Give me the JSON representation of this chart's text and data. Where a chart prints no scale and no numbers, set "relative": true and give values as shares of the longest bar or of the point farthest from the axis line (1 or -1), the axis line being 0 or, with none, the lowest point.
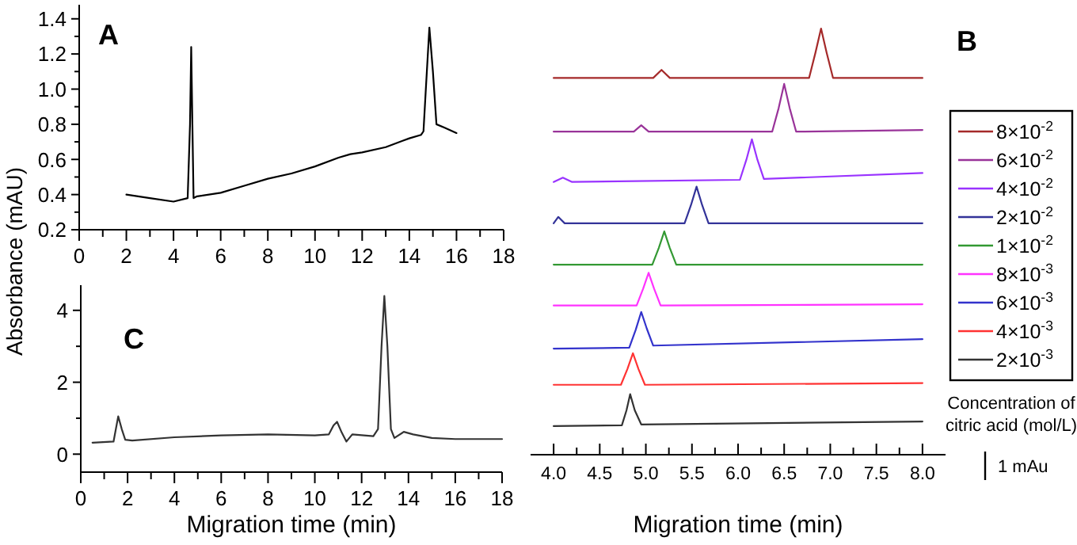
{
  "chart_data": [
    {
      "type": "line",
      "ylabel": "Absorbance (mAU)",
      "annotations": [
        "A"
      ],
      "color": "#000000",
      "legend": false,
      "grid": false,
      "x": [
        2,
        3,
        4,
        4.6,
        4.7,
        4.75,
        4.8,
        4.85,
        5,
        6,
        7,
        8,
        9,
        10,
        11,
        11.5,
        12,
        13,
        14,
        14.5,
        14.6,
        14.7,
        14.85,
        15,
        15.15,
        15.5,
        16
      ],
      "values": [
        0.4,
        0.38,
        0.36,
        0.38,
        0.8,
        1.24,
        0.8,
        0.38,
        0.39,
        0.41,
        0.45,
        0.49,
        0.52,
        0.56,
        0.61,
        0.63,
        0.64,
        0.67,
        0.72,
        0.74,
        0.76,
        1.0,
        1.35,
        1.1,
        0.8,
        0.78,
        0.75
      ],
      "xlim": [
        0,
        18
      ],
      "ylim": [
        0.2,
        1.48
      ],
      "xticks": [
        0,
        {
          "value": 1,
          "label": null
        },
        2,
        {
          "value": 3,
          "label": null
        },
        4,
        {
          "value": 5,
          "label": null
        },
        6,
        {
          "value": 7,
          "label": null
        },
        8,
        {
          "value": 9,
          "label": null
        },
        10,
        {
          "value": 11,
          "label": null
        },
        12,
        {
          "value": 13,
          "label": null
        },
        14,
        {
          "value": 15,
          "label": null
        },
        16,
        {
          "value": 17,
          "label": null
        },
        18
      ],
      "yticks": [
        0.2,
        {
          "value": 0.3,
          "label": null
        },
        0.4,
        {
          "value": 0.5,
          "label": null
        },
        0.6,
        {
          "value": 0.7,
          "label": null
        },
        0.8,
        {
          "value": 0.9,
          "label": null
        },
        {
          "value": 1,
          "label": "1.0"
        },
        {
          "value": 1.1,
          "label": null
        },
        1.2,
        {
          "value": 1.3,
          "label": null
        },
        1.4
      ]
    },
    {
      "type": "line",
      "relative": true,
      "xlabel": "Migration time (min)",
      "legend_title": "Concentration of citric acid (mol/L)",
      "legend": "right",
      "grid": false,
      "annotations": [
        "B",
        "1 mAu"
      ],
      "xlim": [
        3.75,
        8.25
      ],
      "xticks": [
        {
          "value": 4,
          "label": "4.0"
        },
        {
          "value": 4.25,
          "label": null
        },
        4.5,
        {
          "value": 4.75,
          "label": null
        },
        {
          "value": 5,
          "label": "5.0"
        },
        {
          "value": 5.25,
          "label": null
        },
        5.5,
        {
          "value": 5.75,
          "label": null
        },
        {
          "value": 6,
          "label": "6.0"
        },
        {
          "value": 6.25,
          "label": null
        },
        6.5,
        {
          "value": 6.75,
          "label": null
        },
        {
          "value": 7,
          "label": "7.0"
        },
        {
          "value": 7.25,
          "label": null
        },
        7.5,
        {
          "value": 7.75,
          "label": null
        },
        {
          "value": 8,
          "label": "8.0"
        }
      ],
      "series": [
        {
          "name": "8×10$^{-2}$",
          "color": "#a52a2a",
          "x": [
            4.0,
            5.08,
            5.17,
            5.26,
            6.77,
            6.84,
            6.9,
            6.96,
            7.03,
            8.0
          ],
          "values": [
            0.884,
            0.884,
            0.903,
            0.884,
            0.884,
            0.944,
            1,
            0.944,
            0.884,
            0.884
          ]
        },
        {
          "name": "6×10$^{-2}$",
          "color": "#993399",
          "x": [
            4.0,
            4.87,
            4.95,
            5.03,
            6.37,
            6.44,
            6.5,
            6.56,
            6.63,
            8.0
          ],
          "values": [
            0.758,
            0.758,
            0.773,
            0.758,
            0.758,
            0.813,
            0.87,
            0.813,
            0.758,
            0.762
          ]
        },
        {
          "name": "4×10$^{-2}$",
          "color": "#9933ff",
          "x": [
            4.0,
            4.1,
            4.2,
            6.02,
            6.09,
            6.15,
            6.21,
            6.28,
            8.0
          ],
          "values": [
            0.64,
            0.65,
            0.64,
            0.645,
            0.692,
            0.74,
            0.692,
            0.647,
            0.661
          ]
        },
        {
          "name": "2×10$^{-2}$",
          "color": "#333399",
          "x": [
            4.0,
            4.05,
            4.12,
            5.42,
            5.49,
            5.55,
            5.61,
            5.68,
            8.0
          ],
          "values": [
            0.543,
            0.558,
            0.543,
            0.543,
            0.586,
            0.629,
            0.586,
            0.543,
            0.543
          ]
        },
        {
          "name": "1×10$^{-2}$",
          "color": "#339933",
          "x": [
            4.0,
            5.07,
            5.14,
            5.2,
            5.26,
            5.33,
            8.0
          ],
          "values": [
            0.446,
            0.446,
            0.485,
            0.524,
            0.485,
            0.446,
            0.446
          ]
        },
        {
          "name": "8×10$^{-3}$",
          "color": "#ff33ff",
          "x": [
            4.0,
            4.9,
            4.97,
            5.03,
            5.09,
            5.16,
            8.0
          ],
          "values": [
            0.35,
            0.35,
            0.389,
            0.427,
            0.389,
            0.35,
            0.353
          ]
        },
        {
          "name": "6×10$^{-3}$",
          "color": "#3333cc",
          "x": [
            4.0,
            4.82,
            4.89,
            4.95,
            5.01,
            5.08,
            8.0
          ],
          "values": [
            0.249,
            0.251,
            0.293,
            0.335,
            0.296,
            0.256,
            0.271
          ]
        },
        {
          "name": "4×10$^{-3}$",
          "color": "#ff3333",
          "x": [
            4.0,
            4.73,
            4.8,
            4.86,
            4.92,
            4.99,
            8.0
          ],
          "values": [
            0.164,
            0.164,
            0.201,
            0.238,
            0.201,
            0.164,
            0.168
          ]
        },
        {
          "name": "2×10$^{-3}$",
          "color": "#333333",
          "x": [
            4.0,
            4.74,
            4.79,
            4.83,
            4.88,
            4.95,
            8.0
          ],
          "values": [
            0.067,
            0.069,
            0.104,
            0.142,
            0.104,
            0.071,
            0.078
          ]
        }
      ]
    },
    {
      "type": "line",
      "xlabel": "Migration time (min)",
      "annotations": [
        "C"
      ],
      "color": "#333333",
      "legend": false,
      "grid": false,
      "x": [
        0.5,
        1.4,
        1.5,
        1.6,
        1.75,
        1.9,
        2.2,
        4,
        6,
        8,
        10,
        10.6,
        10.8,
        10.95,
        11.15,
        11.35,
        11.6,
        12.5,
        12.7,
        12.85,
        12.97,
        13.1,
        13.25,
        13.4,
        13.8,
        14.2,
        15,
        16,
        18
      ],
      "values": [
        0.32,
        0.35,
        0.7,
        1.05,
        0.7,
        0.4,
        0.38,
        0.47,
        0.52,
        0.55,
        0.52,
        0.55,
        0.8,
        0.9,
        0.6,
        0.35,
        0.55,
        0.5,
        0.7,
        3.0,
        4.4,
        3.0,
        0.7,
        0.45,
        0.62,
        0.55,
        0.45,
        0.42,
        0.42
      ],
      "xlim": [
        0,
        18
      ],
      "ylim": [
        -0.5,
        4.7
      ],
      "xticks": [
        0,
        {
          "value": 1,
          "label": null
        },
        2,
        {
          "value": 3,
          "label": null
        },
        4,
        {
          "value": 5,
          "label": null
        },
        6,
        {
          "value": 7,
          "label": null
        },
        8,
        {
          "value": 9,
          "label": null
        },
        10,
        {
          "value": 11,
          "label": null
        },
        12,
        {
          "value": 13,
          "label": null
        },
        14,
        {
          "value": 15,
          "label": null
        },
        16,
        {
          "value": 17,
          "label": null
        },
        18
      ],
      "yticks": [
        0,
        {
          "value": 1,
          "label": null
        },
        2,
        {
          "value": 3,
          "label": null
        },
        4
      ]
    }
  ]
}
